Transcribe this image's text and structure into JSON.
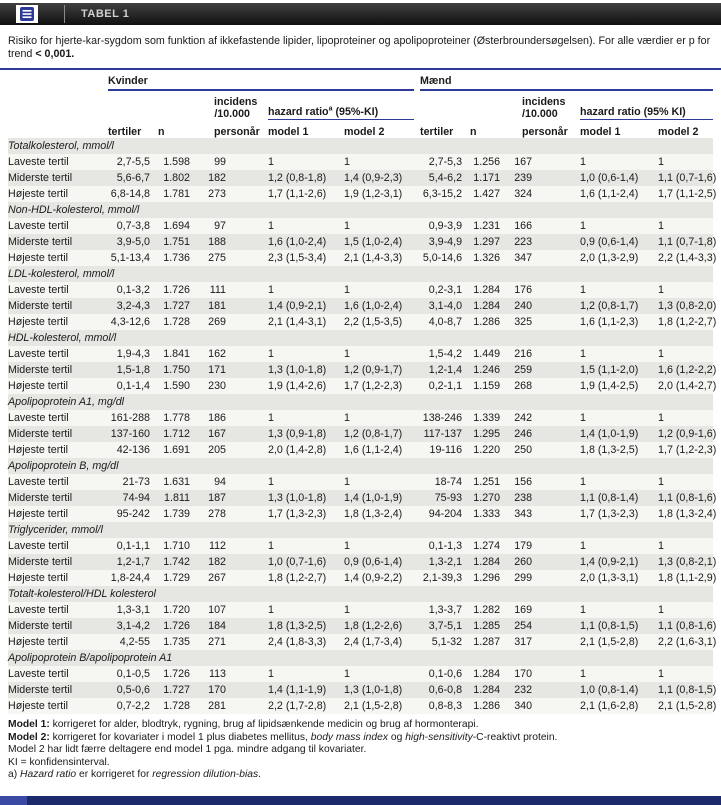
{
  "header": {
    "title": "TABEL 1"
  },
  "caption": {
    "text": "Risiko for hjerte-kar-sygdom som funktion af ikkefastende lipider, lipoproteiner og apolipoproteiner (Østerbroundersøgelsen). For alle værdier er p for trend ",
    "bold": "< 0,001."
  },
  "columns": {
    "women_group": "Kvinder",
    "men_group": "Mænd",
    "tertile": "tertiler",
    "n": "n",
    "incidence_line1": "incidens",
    "incidence_line2": "/10.000",
    "incidence_line3": "personår",
    "hazard_women": "hazard ratio",
    "hazard_women_sup": "a",
    "hazard_women_rest": " (95%-KI)",
    "hazard_men": "hazard ratio (95% KI)",
    "model1": "model 1",
    "model2": "model 2"
  },
  "sections": [
    {
      "name": "Totalkolesterol, mmol/l",
      "rows": [
        {
          "label": "Laveste tertil",
          "k": [
            "2,7-5,5",
            "1.598",
            "99",
            "1",
            "1"
          ],
          "m": [
            "2,7-5,3",
            "1.256",
            "167",
            "1",
            "1"
          ]
        },
        {
          "label": "Miderste tertil",
          "k": [
            "5,6-6,7",
            "1.802",
            "182",
            "1,2 (0,8-1,8)",
            "1,4 (0,9-2,3)"
          ],
          "m": [
            "5,4-6,2",
            "1.171",
            "239",
            "1,0 (0,6-1,4)",
            "1,1 (0,7-1,6)"
          ]
        },
        {
          "label": "Højeste tertil",
          "k": [
            "6,8-14,8",
            "1.781",
            "273",
            "1,7 (1,1-2,6)",
            "1,9 (1,2-3,1)"
          ],
          "m": [
            "6,3-15,2",
            "1.427",
            "324",
            "1,6 (1,1-2,4)",
            "1,7 (1,1-2,5)"
          ]
        }
      ]
    },
    {
      "name": "Non-HDL-kolesterol, mmol/l",
      "rows": [
        {
          "label": "Laveste tertil",
          "k": [
            "0,7-3,8",
            "1.694",
            "97",
            "1",
            "1"
          ],
          "m": [
            "0,9-3,9",
            "1.231",
            "166",
            "1",
            "1"
          ]
        },
        {
          "label": "Miderste tertil",
          "k": [
            "3,9-5,0",
            "1.751",
            "188",
            "1,6 (1,0-2,4)",
            "1,5 (1,0-2,4)"
          ],
          "m": [
            "3,9-4,9",
            "1.297",
            "223",
            "0,9 (0,6-1,4)",
            "1,1 (0,7-1,8)"
          ]
        },
        {
          "label": "Højeste tertil",
          "k": [
            "5,1-13,4",
            "1.736",
            "275",
            "2,3 (1,5-3,4)",
            "2,1 (1,4-3,3)"
          ],
          "m": [
            "5,0-14,6",
            "1.326",
            "347",
            "2,0 (1,3-2,9)",
            "2,2 (1,4-3,3)"
          ]
        }
      ]
    },
    {
      "name": "LDL-kolesterol, mmol/l",
      "rows": [
        {
          "label": "Laveste tertil",
          "k": [
            "0,1-3,2",
            "1.726",
            "111",
            "1",
            "1"
          ],
          "m": [
            "0,2-3,1",
            "1.284",
            "176",
            "1",
            "1"
          ]
        },
        {
          "label": "Miderste tertil",
          "k": [
            "3,2-4,3",
            "1.727",
            "181",
            "1,4 (0,9-2,1)",
            "1,6 (1,0-2,4)"
          ],
          "m": [
            "3,1-4,0",
            "1.284",
            "240",
            "1,2 (0,8-1,7)",
            "1,3 (0,8-2,0)"
          ]
        },
        {
          "label": "Højeste tertil",
          "k": [
            "4,3-12,6",
            "1.728",
            "269",
            "2,1 (1,4-3,1)",
            "2,2 (1,5-3,5)"
          ],
          "m": [
            "4,0-8,7",
            "1.286",
            "325",
            "1,6 (1,1-2,3)",
            "1,8 (1,2-2,7)"
          ]
        }
      ]
    },
    {
      "name": "HDL-kolesterol, mmol/l",
      "rows": [
        {
          "label": "Laveste tertil",
          "k": [
            "1,9-4,3",
            "1.841",
            "162",
            "1",
            "1"
          ],
          "m": [
            "1,5-4,2",
            "1.449",
            "216",
            "1",
            "1"
          ]
        },
        {
          "label": "Miderste tertil",
          "k": [
            "1,5-1,8",
            "1.750",
            "171",
            "1,3 (1,0-1,8)",
            "1,2 (0,9-1,7)"
          ],
          "m": [
            "1,2-1,4",
            "1.246",
            "259",
            "1,5 (1,1-2,0)",
            "1,6 (1,2-2,2)"
          ]
        },
        {
          "label": "Højeste tertil",
          "k": [
            "0,1-1,4",
            "1.590",
            "230",
            "1,9 (1,4-2,6)",
            "1,7 (1,2-2,3)"
          ],
          "m": [
            "0,2-1,1",
            "1.159",
            "268",
            "1,9 (1,4-2,5)",
            "2,0 (1,4-2,7)"
          ]
        }
      ]
    },
    {
      "name": "Apolipoprotein A1, mg/dl",
      "rows": [
        {
          "label": "Laveste tertil",
          "k": [
            "161-288",
            "1.778",
            "186",
            "1",
            "1"
          ],
          "m": [
            "138-246",
            "1.339",
            "242",
            "1",
            "1"
          ]
        },
        {
          "label": "Miderste tertil",
          "k": [
            "137-160",
            "1.712",
            "167",
            "1,3 (0,9-1,8)",
            "1,2 (0,8-1,7)"
          ],
          "m": [
            "117-137",
            "1.295",
            "246",
            "1,4 (1,0-1,9)",
            "1,2 (0,9-1,6)"
          ]
        },
        {
          "label": "Højeste tertil",
          "k": [
            "42-136",
            "1.691",
            "205",
            "2,0 (1,4-2,8)",
            "1,6 (1,1-2,4)"
          ],
          "m": [
            "19-116",
            "1.220",
            "250",
            "1,8 (1,3-2,5)",
            "1,7 (1,2-2,3)"
          ]
        }
      ]
    },
    {
      "name": "Apolipoprotein B, mg/dl",
      "rows": [
        {
          "label": "Laveste tertil",
          "k": [
            "21-73",
            "1.631",
            "94",
            "1",
            "1"
          ],
          "m": [
            "18-74",
            "1.251",
            "156",
            "1",
            "1"
          ]
        },
        {
          "label": "Miderste tertil",
          "k": [
            "74-94",
            "1.811",
            "187",
            "1,3 (1,0-1,8)",
            "1,4 (1,0-1,9)"
          ],
          "m": [
            "75-93",
            "1.270",
            "238",
            "1,1 (0,8-1,4)",
            "1,1 (0,8-1,6)"
          ]
        },
        {
          "label": "Højeste tertil",
          "k": [
            "95-242",
            "1.739",
            "278",
            "1,7 (1,3-2,3)",
            "1,8 (1,3-2,4)"
          ],
          "m": [
            "94-204",
            "1.333",
            "343",
            "1,7 (1,3-2,3)",
            "1,8 (1,3-2,4)"
          ]
        }
      ]
    },
    {
      "name": "Triglycerider, mmol/l",
      "rows": [
        {
          "label": "Laveste tertil",
          "k": [
            "0,1-1,1",
            "1.710",
            "112",
            "1",
            "1"
          ],
          "m": [
            "0,1-1,3",
            "1.274",
            "179",
            "1",
            "1"
          ]
        },
        {
          "label": "Miderste tertil",
          "k": [
            "1,2-1,7",
            "1.742",
            "182",
            "1,0 (0,7-1,6)",
            "0,9 (0,6-1,4)"
          ],
          "m": [
            "1,3-2,1",
            "1.284",
            "260",
            "1,4 (0,9-2,1)",
            "1,3 (0,8-2,1)"
          ]
        },
        {
          "label": "Højeste tertil",
          "k": [
            "1,8-24,4",
            "1.729",
            "267",
            "1,8 (1,2-2,7)",
            "1,4 (0,9-2,2)"
          ],
          "m": [
            "2,1-39,3",
            "1.296",
            "299",
            "2,0 (1,3-3,1)",
            "1,8 (1,1-2,9)"
          ]
        }
      ]
    },
    {
      "name": "Totalt-kolesterol/HDL kolesterol",
      "rows": [
        {
          "label": "Laveste tertil",
          "k": [
            "1,3-3,1",
            "1.720",
            "107",
            "1",
            "1"
          ],
          "m": [
            "1,3-3,7",
            "1.282",
            "169",
            "1",
            "1"
          ]
        },
        {
          "label": "Miderste tertil",
          "k": [
            "3,1-4,2",
            "1.726",
            "184",
            "1,8 (1,3-2,5)",
            "1,8 (1,2-2,6)"
          ],
          "m": [
            "3,7-5,1",
            "1.285",
            "254",
            "1,1 (0,8-1,5)",
            "1,1 (0,8-1,6)"
          ]
        },
        {
          "label": "Højeste tertil",
          "k": [
            "4,2-55",
            "1.735",
            "271",
            "2,4 (1,8-3,3)",
            "2,4 (1,7-3,4)"
          ],
          "m": [
            "5,1-32",
            "1.287",
            "317",
            "2,1 (1,5-2,8)",
            "2,2 (1,6-3,1)"
          ]
        }
      ]
    },
    {
      "name": "Apolipoprotein B/apolipoprotein A1",
      "rows": [
        {
          "label": "Laveste tertil",
          "k": [
            "0,1-0,5",
            "1.726",
            "113",
            "1",
            "1"
          ],
          "m": [
            "0,1-0,6",
            "1.284",
            "170",
            "1",
            "1"
          ]
        },
        {
          "label": "Miderste tertil",
          "k": [
            "0,5-0,6",
            "1.727",
            "170",
            "1,4 (1,1-1,9)",
            "1,3 (1,0-1,8)"
          ],
          "m": [
            "0,6-0,8",
            "1.284",
            "232",
            "1,0 (0,8-1,4)",
            "1,1 (0,8-1,5)"
          ]
        },
        {
          "label": "Højeste tertil",
          "k": [
            "0,7-2,2",
            "1.728",
            "281",
            "2,2 (1,7-2,8)",
            "2,1 (1,5-2,8)"
          ],
          "m": [
            "0,8-8,3",
            "1.286",
            "340",
            "2,1 (1,6-2,8)",
            "2,1 (1,5-2,8)"
          ]
        }
      ]
    }
  ],
  "footnotes": [
    [
      {
        "t": "Model 1:",
        "b": true
      },
      {
        "t": " korrigeret for alder, blodtryk, rygning, brug af lipidsænkende medicin og brug af hormonterapi."
      }
    ],
    [
      {
        "t": "Model 2:",
        "b": true
      },
      {
        "t": " korrigeret for kovariater i model 1 plus diabetes mellitus, "
      },
      {
        "t": "body mass index",
        "i": true
      },
      {
        "t": " og "
      },
      {
        "t": "high-sensitivity",
        "i": true
      },
      {
        "t": "-C-reaktivt protein."
      }
    ],
    [
      {
        "t": "Model 2 har lidt færre deltagere end model 1 pga. mindre adgang til kovariater."
      }
    ],
    [
      {
        "t": "KI = konfidensinterval."
      }
    ],
    [
      {
        "t": "a) "
      },
      {
        "t": "Hazard ratio",
        "i": true
      },
      {
        "t": " er korrigeret for "
      },
      {
        "t": "regression dilution-bias",
        "i": true
      },
      {
        "t": "."
      }
    ]
  ],
  "colors": {
    "accent_blue": "#2e3a97",
    "topbar_dark": "#1a1a1a",
    "bottom_navy": "#1c2a6b",
    "stripe_gray": "#e6e6e3",
    "stripe_light": "#f6f6f3"
  }
}
